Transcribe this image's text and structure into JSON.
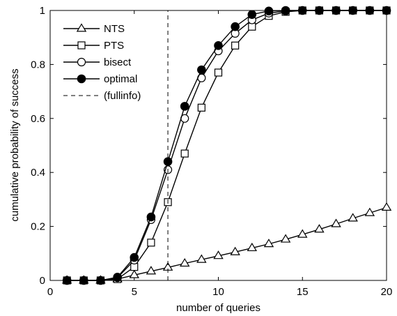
{
  "chart_data": {
    "type": "line",
    "xlabel": "number of queries",
    "ylabel": "cumulative probability of success",
    "xlim": [
      0,
      20
    ],
    "ylim": [
      0,
      1
    ],
    "xticks": [
      "0",
      "5",
      "10",
      "15",
      "20"
    ],
    "yticks": [
      "0",
      "0.2",
      "0.4",
      "0.6",
      "0.8",
      "1"
    ],
    "grid": false,
    "legend_position": "top-left",
    "series": [
      {
        "name": "NTS",
        "marker": "triangle-open",
        "x": [
          1,
          2,
          3,
          4,
          5,
          6,
          7,
          8,
          9,
          10,
          11,
          12,
          13,
          14,
          15,
          16,
          17,
          18,
          19,
          20
        ],
        "values": [
          0,
          0,
          0,
          0.005,
          0.02,
          0.034,
          0.048,
          0.063,
          0.077,
          0.091,
          0.105,
          0.12,
          0.135,
          0.152,
          0.17,
          0.189,
          0.209,
          0.23,
          0.25,
          0.27
        ]
      },
      {
        "name": "PTS",
        "marker": "square-open",
        "x": [
          1,
          2,
          3,
          4,
          5,
          6,
          7,
          8,
          9,
          10,
          11,
          12,
          13,
          14,
          15,
          16,
          17,
          18,
          19,
          20
        ],
        "values": [
          0,
          0,
          0,
          0.005,
          0.05,
          0.14,
          0.29,
          0.47,
          0.64,
          0.77,
          0.87,
          0.94,
          0.98,
          0.995,
          1,
          1,
          1,
          1,
          1,
          1
        ]
      },
      {
        "name": "bisect",
        "marker": "circle-open",
        "x": [
          1,
          2,
          3,
          4,
          5,
          6,
          7,
          8,
          9,
          10,
          11,
          12,
          13,
          14,
          15,
          16,
          17,
          18,
          19,
          20
        ],
        "values": [
          0,
          0,
          0,
          0.01,
          0.075,
          0.225,
          0.41,
          0.6,
          0.75,
          0.85,
          0.915,
          0.965,
          0.99,
          0.998,
          1,
          1,
          1,
          1,
          1,
          1
        ]
      },
      {
        "name": "optimal",
        "marker": "circle-filled",
        "x": [
          1,
          2,
          3,
          4,
          5,
          6,
          7,
          8,
          9,
          10,
          11,
          12,
          13,
          14,
          15,
          16,
          17,
          18,
          19,
          20
        ],
        "values": [
          0,
          0,
          0,
          0.012,
          0.085,
          0.235,
          0.44,
          0.645,
          0.78,
          0.87,
          0.94,
          0.985,
          0.998,
          1,
          1,
          1,
          1,
          1,
          1,
          1
        ]
      },
      {
        "name": "(fullinfo)",
        "marker": "none",
        "style": "dashed",
        "x": [
          7,
          7,
          20
        ],
        "values": [
          0,
          1,
          1
        ]
      }
    ]
  }
}
